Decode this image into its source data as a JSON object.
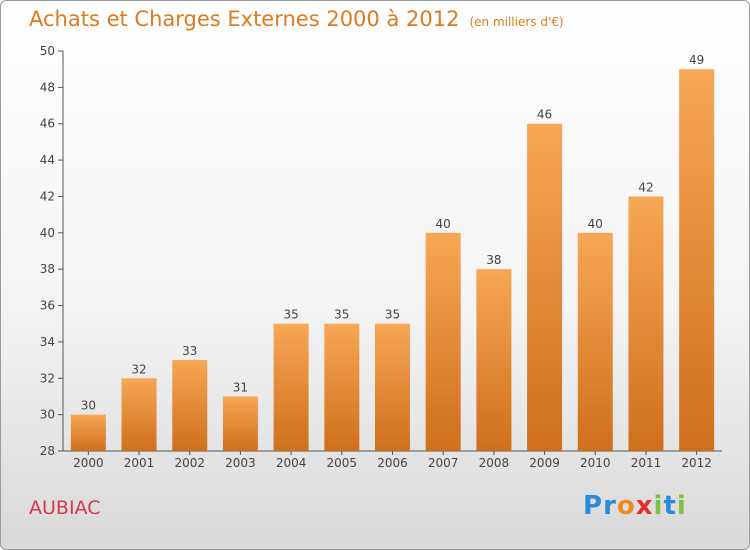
{
  "chart_data": {
    "type": "bar",
    "title": "Achats et Charges Externes 2000 à 2012",
    "subtitle": "(en milliers d'€)",
    "categories": [
      "2000",
      "2001",
      "2002",
      "2003",
      "2004",
      "2005",
      "2006",
      "2007",
      "2008",
      "2009",
      "2010",
      "2011",
      "2012"
    ],
    "values": [
      30,
      32,
      33,
      31,
      35,
      35,
      35,
      40,
      38,
      46,
      40,
      42,
      49
    ],
    "ylim": [
      28,
      50
    ],
    "yticks": [
      28,
      30,
      32,
      34,
      36,
      38,
      40,
      42,
      44,
      46,
      48,
      50
    ],
    "grid": false,
    "colors": {
      "bar_top": "#f7a755",
      "bar_bottom": "#cf6f1c"
    }
  },
  "footer": {
    "place": "AUBIAC",
    "logo": "Proxiti",
    "logo_colors": [
      "#2b8bd6",
      "#2b8bd6",
      "#f08a1c",
      "#e03030",
      "#7cc243",
      "#2b8bd6",
      "#7cc243"
    ]
  }
}
